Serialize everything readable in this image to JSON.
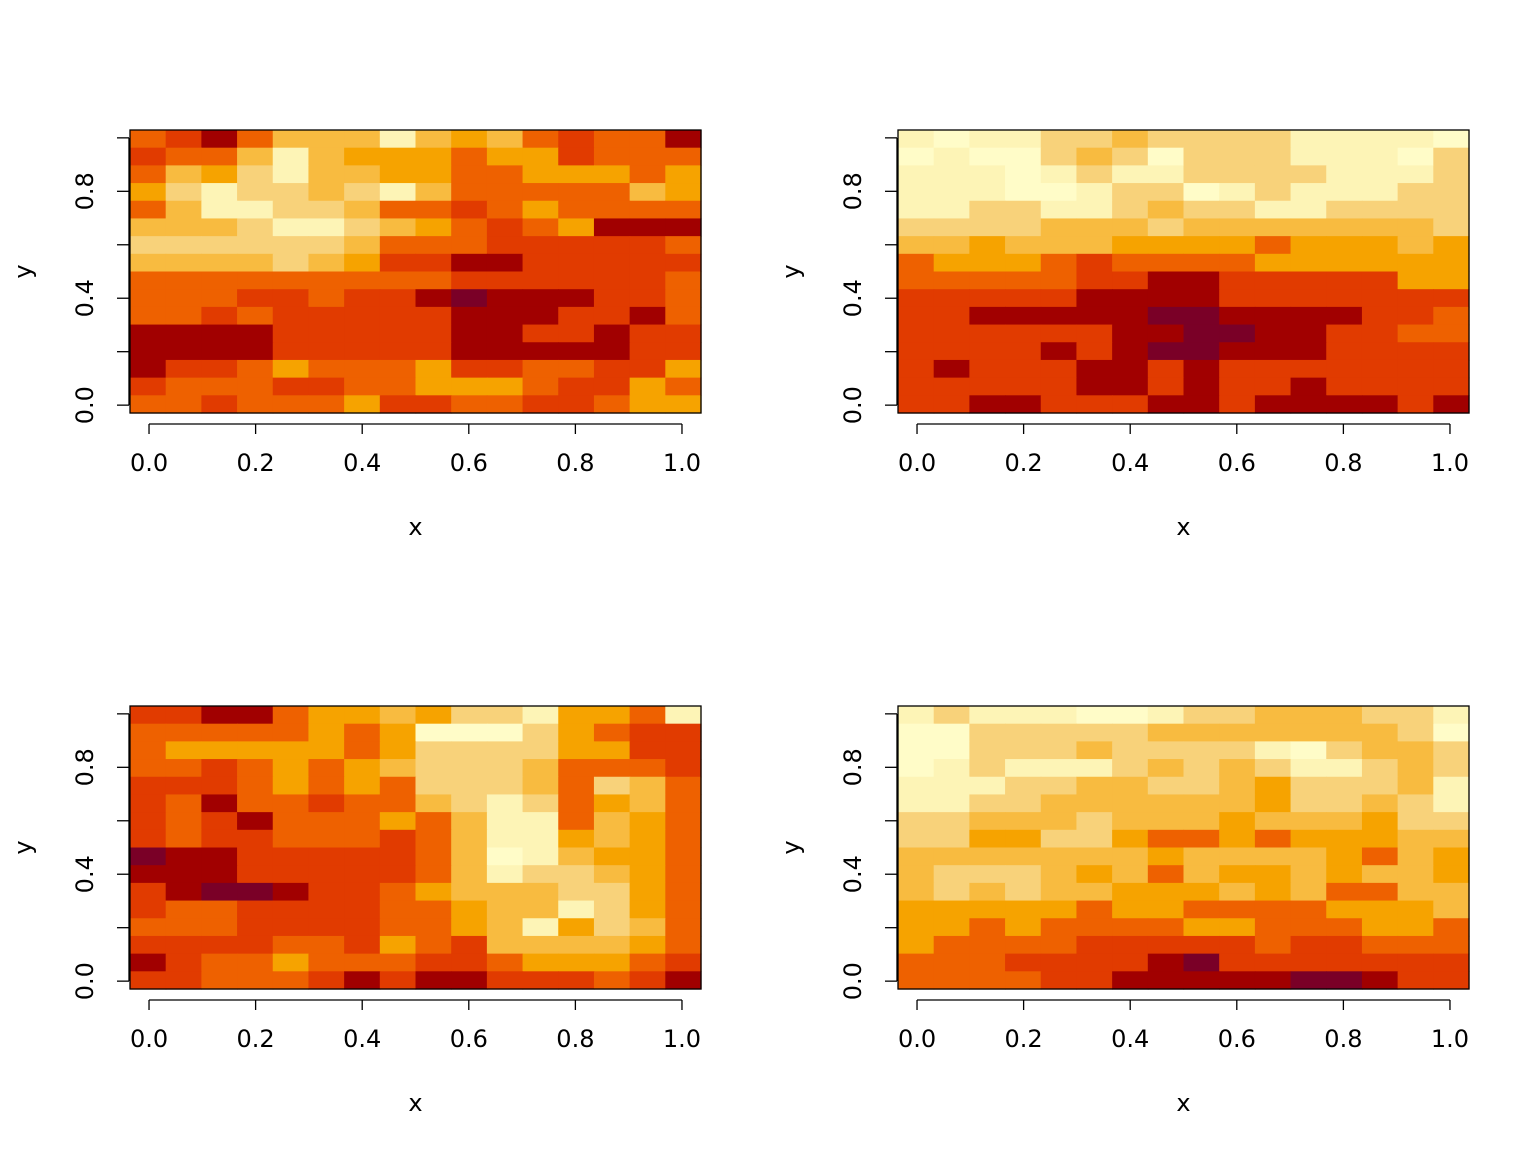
{
  "chart_data": [
    {
      "type": "heatmap",
      "title": "",
      "xlabel": "x",
      "ylabel": "y",
      "xlim": [
        -0.0357,
        1.0357
      ],
      "ylim": [
        -0.0294,
        1.0294
      ],
      "x_ticks": [
        "0.0",
        "0.2",
        "0.4",
        "0.6",
        "0.8",
        "1.0"
      ],
      "y_ticks": [
        "0.0",
        "0.4",
        "0.8"
      ],
      "y_minor_ticks": [
        0.2,
        0.6,
        1.0
      ],
      "nx": 16,
      "ny": 16,
      "grid": false,
      "legend": "none",
      "palette": "heat",
      "z": [
        [
          3,
          2,
          1,
          3,
          5,
          5,
          5,
          7,
          5,
          4,
          5,
          3,
          2,
          3,
          3,
          1
        ],
        [
          2,
          3,
          3,
          5,
          7,
          5,
          4,
          4,
          4,
          3,
          4,
          4,
          2,
          3,
          3,
          3
        ],
        [
          3,
          5,
          4,
          6,
          7,
          5,
          5,
          4,
          4,
          3,
          3,
          4,
          4,
          4,
          3,
          4
        ],
        [
          4,
          6,
          7,
          6,
          6,
          5,
          6,
          7,
          5,
          3,
          3,
          3,
          3,
          3,
          5,
          4
        ],
        [
          3,
          5,
          7,
          7,
          6,
          6,
          5,
          3,
          3,
          2,
          3,
          4,
          3,
          3,
          3,
          3
        ],
        [
          5,
          5,
          5,
          6,
          7,
          7,
          6,
          5,
          4,
          3,
          2,
          3,
          4,
          1,
          1,
          1
        ],
        [
          6,
          6,
          6,
          6,
          6,
          6,
          5,
          3,
          3,
          3,
          2,
          2,
          2,
          2,
          2,
          3
        ],
        [
          5,
          5,
          5,
          5,
          6,
          5,
          4,
          2,
          2,
          1,
          1,
          2,
          2,
          2,
          2,
          2
        ],
        [
          3,
          3,
          3,
          3,
          3,
          3,
          3,
          3,
          3,
          2,
          2,
          2,
          2,
          2,
          2,
          3
        ],
        [
          3,
          3,
          3,
          2,
          2,
          3,
          2,
          2,
          1,
          0,
          1,
          1,
          1,
          2,
          2,
          3
        ],
        [
          3,
          3,
          2,
          3,
          2,
          2,
          2,
          2,
          2,
          1,
          1,
          1,
          2,
          2,
          1,
          3
        ],
        [
          1,
          1,
          1,
          1,
          2,
          2,
          2,
          2,
          2,
          1,
          1,
          2,
          2,
          1,
          2,
          2
        ],
        [
          1,
          1,
          1,
          1,
          2,
          2,
          2,
          2,
          2,
          1,
          1,
          1,
          1,
          1,
          2,
          2
        ],
        [
          1,
          2,
          2,
          3,
          4,
          3,
          3,
          3,
          4,
          2,
          2,
          3,
          3,
          2,
          2,
          4
        ],
        [
          2,
          3,
          3,
          3,
          2,
          2,
          3,
          3,
          4,
          4,
          4,
          3,
          2,
          2,
          4,
          3
        ],
        [
          3,
          3,
          2,
          3,
          3,
          3,
          4,
          2,
          2,
          3,
          3,
          2,
          2,
          3,
          4,
          4
        ]
      ]
    },
    {
      "type": "heatmap",
      "title": "",
      "xlabel": "x",
      "ylabel": "y",
      "xlim": [
        -0.0357,
        1.0357
      ],
      "ylim": [
        -0.0294,
        1.0294
      ],
      "x_ticks": [
        "0.0",
        "0.2",
        "0.4",
        "0.6",
        "0.8",
        "1.0"
      ],
      "y_ticks": [
        "0.0",
        "0.4",
        "0.8"
      ],
      "y_minor_ticks": [
        0.2,
        0.6,
        1.0
      ],
      "nx": 16,
      "ny": 16,
      "grid": false,
      "legend": "none",
      "palette": "heat",
      "z": [
        [
          7,
          8,
          7,
          7,
          6,
          6,
          5,
          6,
          6,
          6,
          6,
          7,
          7,
          7,
          7,
          8
        ],
        [
          8,
          7,
          8,
          8,
          6,
          5,
          6,
          8,
          6,
          6,
          6,
          7,
          7,
          7,
          8,
          6
        ],
        [
          7,
          7,
          7,
          8,
          7,
          6,
          7,
          7,
          6,
          6,
          6,
          6,
          7,
          7,
          7,
          6
        ],
        [
          7,
          7,
          7,
          8,
          8,
          7,
          6,
          6,
          8,
          7,
          6,
          7,
          7,
          7,
          6,
          6
        ],
        [
          7,
          7,
          6,
          6,
          7,
          7,
          6,
          5,
          6,
          6,
          7,
          7,
          6,
          6,
          6,
          6
        ],
        [
          6,
          6,
          6,
          6,
          5,
          5,
          5,
          6,
          5,
          5,
          5,
          5,
          5,
          5,
          5,
          6
        ],
        [
          5,
          5,
          4,
          5,
          5,
          5,
          4,
          4,
          4,
          4,
          3,
          4,
          4,
          4,
          5,
          4
        ],
        [
          3,
          4,
          4,
          4,
          3,
          2,
          3,
          3,
          3,
          3,
          4,
          4,
          4,
          4,
          4,
          4
        ],
        [
          3,
          3,
          3,
          3,
          3,
          2,
          2,
          1,
          1,
          2,
          2,
          2,
          2,
          2,
          4,
          4
        ],
        [
          2,
          2,
          2,
          2,
          2,
          1,
          1,
          1,
          1,
          2,
          2,
          2,
          2,
          2,
          2,
          2
        ],
        [
          2,
          2,
          1,
          1,
          1,
          1,
          1,
          0,
          0,
          1,
          1,
          1,
          1,
          2,
          2,
          3
        ],
        [
          2,
          2,
          2,
          2,
          2,
          2,
          1,
          1,
          0,
          0,
          1,
          1,
          2,
          2,
          3,
          3
        ],
        [
          2,
          2,
          2,
          2,
          1,
          2,
          1,
          0,
          0,
          1,
          1,
          1,
          2,
          2,
          2,
          2
        ],
        [
          2,
          1,
          2,
          2,
          2,
          1,
          1,
          2,
          1,
          2,
          2,
          2,
          2,
          2,
          2,
          2
        ],
        [
          2,
          2,
          2,
          2,
          2,
          1,
          1,
          2,
          1,
          2,
          2,
          1,
          2,
          2,
          2,
          2
        ],
        [
          2,
          2,
          1,
          1,
          2,
          2,
          2,
          1,
          1,
          2,
          1,
          1,
          1,
          1,
          2,
          1
        ]
      ]
    },
    {
      "type": "heatmap",
      "title": "",
      "xlabel": "x",
      "ylabel": "y",
      "xlim": [
        -0.0357,
        1.0357
      ],
      "ylim": [
        -0.0294,
        1.0294
      ],
      "x_ticks": [
        "0.0",
        "0.2",
        "0.4",
        "0.6",
        "0.8",
        "1.0"
      ],
      "y_ticks": [
        "0.0",
        "0.4",
        "0.8"
      ],
      "y_minor_ticks": [
        0.2,
        0.6,
        1.0
      ],
      "nx": 16,
      "ny": 16,
      "grid": false,
      "legend": "none",
      "palette": "heat",
      "z": [
        [
          2,
          2,
          1,
          1,
          3,
          4,
          4,
          5,
          4,
          6,
          6,
          7,
          4,
          4,
          3,
          7
        ],
        [
          3,
          3,
          3,
          3,
          3,
          4,
          3,
          4,
          8,
          8,
          8,
          6,
          4,
          3,
          2,
          2
        ],
        [
          3,
          4,
          4,
          4,
          4,
          4,
          3,
          4,
          6,
          6,
          6,
          6,
          4,
          4,
          2,
          2
        ],
        [
          3,
          3,
          2,
          3,
          4,
          3,
          4,
          5,
          6,
          6,
          6,
          5,
          3,
          3,
          3,
          2
        ],
        [
          2,
          2,
          2,
          3,
          4,
          3,
          4,
          3,
          6,
          6,
          6,
          5,
          3,
          6,
          5,
          3
        ],
        [
          2,
          3,
          1,
          3,
          3,
          2,
          3,
          3,
          5,
          6,
          7,
          6,
          3,
          4,
          5,
          3
        ],
        [
          2,
          3,
          2,
          1,
          3,
          3,
          3,
          4,
          3,
          5,
          7,
          7,
          3,
          5,
          4,
          3
        ],
        [
          2,
          3,
          2,
          2,
          3,
          3,
          3,
          2,
          3,
          5,
          7,
          7,
          4,
          5,
          4,
          3
        ],
        [
          0,
          1,
          1,
          2,
          2,
          2,
          2,
          2,
          3,
          5,
          8,
          7,
          5,
          4,
          4,
          3
        ],
        [
          1,
          1,
          1,
          2,
          2,
          2,
          2,
          2,
          3,
          5,
          7,
          6,
          6,
          5,
          4,
          3
        ],
        [
          2,
          1,
          0,
          0,
          1,
          2,
          2,
          3,
          4,
          5,
          5,
          5,
          6,
          6,
          4,
          3
        ],
        [
          2,
          3,
          3,
          2,
          2,
          2,
          2,
          3,
          3,
          4,
          5,
          5,
          7,
          6,
          4,
          3
        ],
        [
          3,
          3,
          3,
          2,
          2,
          2,
          2,
          3,
          3,
          4,
          5,
          7,
          4,
          6,
          5,
          3
        ],
        [
          2,
          2,
          2,
          2,
          3,
          3,
          2,
          4,
          3,
          2,
          5,
          5,
          5,
          5,
          4,
          3
        ],
        [
          1,
          2,
          3,
          3,
          4,
          3,
          3,
          3,
          2,
          2,
          3,
          4,
          4,
          4,
          3,
          2
        ],
        [
          2,
          2,
          3,
          3,
          3,
          2,
          1,
          2,
          1,
          1,
          2,
          2,
          2,
          3,
          2,
          1
        ]
      ]
    },
    {
      "type": "heatmap",
      "title": "",
      "xlabel": "x",
      "ylabel": "y",
      "xlim": [
        -0.0357,
        1.0357
      ],
      "ylim": [
        -0.0294,
        1.0294
      ],
      "x_ticks": [
        "0.0",
        "0.2",
        "0.4",
        "0.6",
        "0.8",
        "1.0"
      ],
      "y_ticks": [
        "0.0",
        "0.4",
        "0.8"
      ],
      "y_minor_ticks": [
        0.2,
        0.6,
        1.0
      ],
      "nx": 16,
      "ny": 16,
      "grid": false,
      "legend": "none",
      "palette": "heat",
      "z": [
        [
          7,
          6,
          7,
          7,
          7,
          8,
          8,
          7,
          6,
          6,
          5,
          5,
          5,
          6,
          6,
          7
        ],
        [
          8,
          8,
          6,
          6,
          6,
          6,
          6,
          5,
          5,
          5,
          5,
          5,
          5,
          5,
          6,
          8
        ],
        [
          8,
          8,
          6,
          6,
          6,
          5,
          6,
          6,
          6,
          6,
          7,
          8,
          6,
          5,
          5,
          6
        ],
        [
          8,
          7,
          6,
          7,
          7,
          7,
          6,
          5,
          6,
          5,
          6,
          7,
          7,
          6,
          5,
          6
        ],
        [
          7,
          7,
          7,
          6,
          6,
          5,
          5,
          6,
          6,
          5,
          4,
          6,
          6,
          6,
          5,
          7
        ],
        [
          7,
          7,
          6,
          6,
          5,
          5,
          5,
          5,
          5,
          5,
          4,
          6,
          6,
          5,
          6,
          7
        ],
        [
          6,
          6,
          5,
          5,
          5,
          6,
          5,
          5,
          5,
          4,
          5,
          5,
          5,
          4,
          6,
          6
        ],
        [
          6,
          6,
          4,
          4,
          6,
          6,
          4,
          3,
          3,
          4,
          3,
          4,
          4,
          4,
          5,
          5
        ],
        [
          5,
          5,
          5,
          5,
          5,
          5,
          5,
          4,
          5,
          5,
          5,
          5,
          4,
          3,
          5,
          4
        ],
        [
          5,
          6,
          6,
          6,
          5,
          4,
          5,
          3,
          5,
          4,
          4,
          5,
          4,
          5,
          5,
          4
        ],
        [
          5,
          6,
          5,
          6,
          5,
          5,
          4,
          4,
          4,
          5,
          4,
          5,
          3,
          3,
          5,
          5
        ],
        [
          4,
          4,
          4,
          4,
          4,
          3,
          4,
          4,
          3,
          3,
          3,
          3,
          4,
          4,
          4,
          5
        ],
        [
          4,
          4,
          3,
          4,
          3,
          3,
          3,
          3,
          4,
          4,
          3,
          3,
          3,
          4,
          4,
          3
        ],
        [
          4,
          3,
          3,
          3,
          3,
          2,
          2,
          2,
          2,
          2,
          3,
          2,
          2,
          3,
          3,
          3
        ],
        [
          3,
          3,
          3,
          2,
          2,
          2,
          2,
          1,
          0,
          2,
          2,
          2,
          2,
          2,
          2,
          2
        ],
        [
          3,
          3,
          3,
          3,
          2,
          2,
          1,
          1,
          1,
          1,
          1,
          0,
          0,
          1,
          2,
          2
        ]
      ]
    }
  ]
}
